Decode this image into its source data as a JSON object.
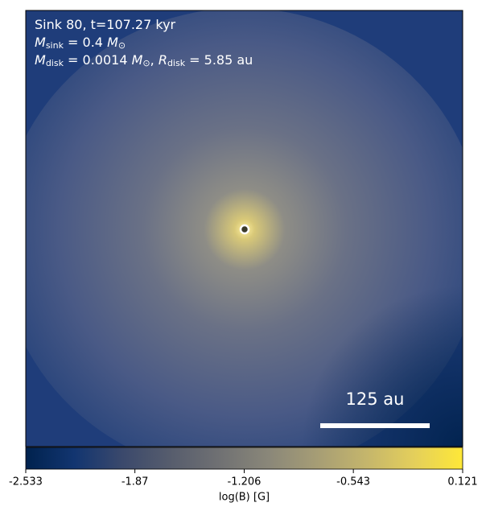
{
  "chart_data": {
    "type": "image",
    "annotation_lines": [
      [
        {
          "text": "Sink 80, t=107.27 kyr"
        }
      ],
      [
        {
          "text": "M",
          "italic": true
        },
        {
          "text": "sink",
          "sub": true
        },
        {
          "text": " = 0.4 "
        },
        {
          "text": "M",
          "italic": true
        },
        {
          "text": "⊙",
          "sub": true
        }
      ],
      [
        {
          "text": "M",
          "italic": true
        },
        {
          "text": "disk",
          "sub": true
        },
        {
          "text": " = 0.0014 "
        },
        {
          "text": "M",
          "italic": true
        },
        {
          "text": "⊙",
          "sub": true
        },
        {
          "text": ", "
        },
        {
          "text": "R",
          "italic": true
        },
        {
          "text": "disk",
          "sub": true
        },
        {
          "text": " = 5.85 au"
        }
      ]
    ],
    "scale_bar_label": "125 au",
    "colorbar": {
      "label": "log(B) [G]",
      "colormap": "cividis",
      "lim": [
        -2.533,
        0.121
      ],
      "ticks": [
        -2.533,
        -1.87,
        -1.206,
        -0.543,
        0.121
      ]
    }
  }
}
